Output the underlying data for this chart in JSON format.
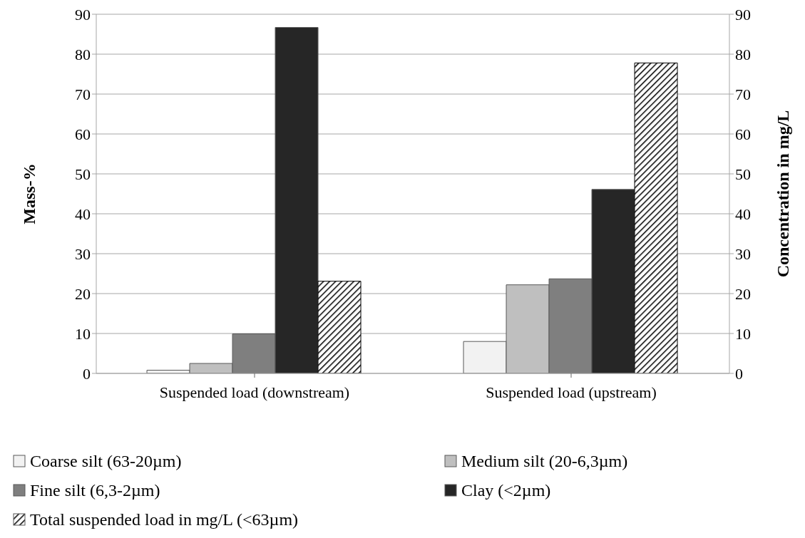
{
  "chart_data": {
    "type": "bar",
    "categories": [
      "Suspended load (downstream)",
      "Suspended load (upstream)"
    ],
    "ylabel": "Mass-%",
    "y2label": "Concentration in mg/L",
    "ylim": [
      0,
      90
    ],
    "yticks": [
      0,
      10,
      20,
      30,
      40,
      50,
      60,
      70,
      80,
      90
    ],
    "y2lim": [
      0,
      90
    ],
    "y2ticks": [
      0,
      10,
      20,
      30,
      40,
      50,
      60,
      70,
      80,
      90
    ],
    "grid": "y",
    "legend": "bottom",
    "series": [
      {
        "name": "Coarse silt (63-20µm)",
        "color": "#f2f2f2",
        "values": [
          0.8,
          8.0
        ]
      },
      {
        "name": "Medium silt (20-6,3µm)",
        "color": "#bfbfbf",
        "values": [
          2.5,
          22.2
        ]
      },
      {
        "name": "Fine silt (6,3-2µm)",
        "color": "#7f7f7f",
        "values": [
          9.9,
          23.7
        ]
      },
      {
        "name": "Clay (<2µm)",
        "color": "#262626",
        "values": [
          86.7,
          46.1
        ]
      },
      {
        "name": "Total suspended load in mg/L (<63µm)",
        "color": "#000000",
        "values": [
          23.1,
          77.8
        ],
        "axis": "y2"
      }
    ]
  }
}
